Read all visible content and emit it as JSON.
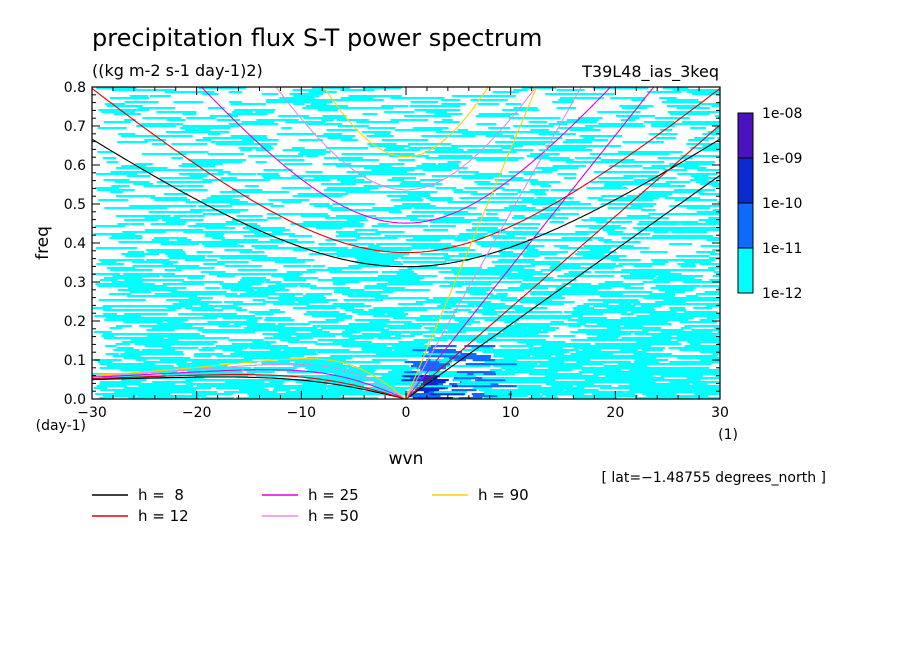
{
  "chart_data": {
    "type": "heatmap",
    "title": "precipitation flux S-T power spectrum",
    "subtitle": "((kg m-2 s-1 day-1)2)",
    "run_label": "T39L48_ias_3keq",
    "xlabel": "wvn",
    "ylabel": "freq",
    "x_unit": "(1)",
    "y_unit": "(day-1)",
    "xlim": [
      -30,
      30
    ],
    "ylim": [
      0,
      0.8
    ],
    "x_ticks": [
      -30,
      -20,
      -10,
      0,
      10,
      20,
      30
    ],
    "x_tick_labels": [
      "−30",
      "−20",
      "−10",
      "0",
      "10",
      "20",
      "30"
    ],
    "y_ticks": [
      0,
      0.1,
      0.2,
      0.3,
      0.4,
      0.5,
      0.6,
      0.7,
      0.8
    ],
    "y_tick_labels": [
      "0.0",
      "0.1",
      "0.2",
      "0.3",
      "0.4",
      "0.5",
      "0.6",
      "0.7",
      "0.8"
    ],
    "colorbar": {
      "levels": [
        "1e-12",
        "1e-11",
        "1e-10",
        "1e-09",
        "1e-08"
      ],
      "colors": [
        "#00ffff",
        "#0f6bff",
        "#0a2ad0",
        "#4d12bf"
      ]
    },
    "dispersion_curves": [
      {
        "name": "h =  8",
        "h": 8,
        "color": "#000000"
      },
      {
        "name": "h = 12",
        "h": 12,
        "color": "#e00000"
      },
      {
        "name": "h = 25",
        "h": 25,
        "color": "#e000e0"
      },
      {
        "name": "h = 50",
        "h": 50,
        "color": "#e08ee0"
      },
      {
        "name": "h = 90",
        "h": 90,
        "color": "#ffd000"
      }
    ],
    "footnote": "[ lat=−1.48755 degrees_north ]"
  }
}
